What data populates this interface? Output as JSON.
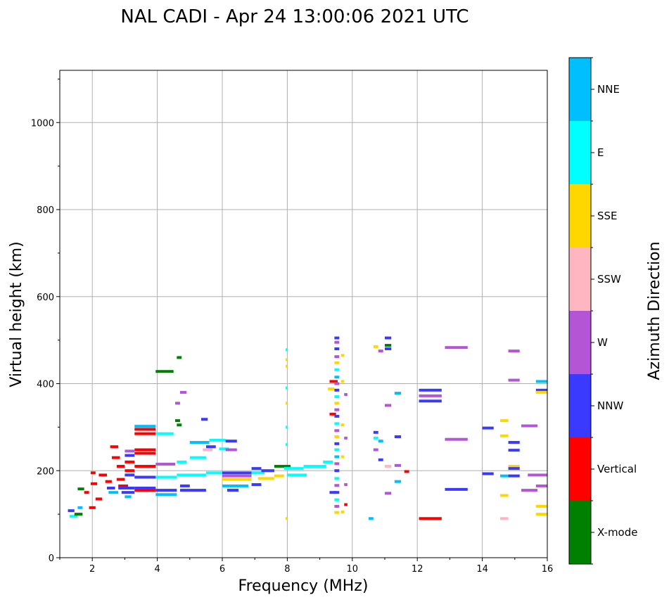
{
  "chart_data": {
    "type": "scatter",
    "title": "NAL CADI - Apr 24 13:00:06 2021 UTC",
    "xlabel": "Frequency (MHz)",
    "ylabel": "Virtual height (km)",
    "xlim": [
      1,
      16
    ],
    "ylim": [
      0,
      1120
    ],
    "xticks": [
      2,
      4,
      6,
      8,
      10,
      12,
      14,
      16
    ],
    "yticks": [
      0,
      200,
      400,
      600,
      800,
      1000
    ],
    "grid": true,
    "colorbar": {
      "title": "Azimuth Direction",
      "categories": [
        {
          "name": "X-mode",
          "color": "#008000"
        },
        {
          "name": "Vertical",
          "color": "#ff0000"
        },
        {
          "name": "NNW",
          "color": "#3a3aff"
        },
        {
          "name": "W",
          "color": "#b355d6"
        },
        {
          "name": "SSW",
          "color": "#ffb6c1"
        },
        {
          "name": "SSE",
          "color": "#ffd700"
        },
        {
          "name": "E",
          "color": "#00ffff"
        },
        {
          "name": "NNE",
          "color": "#00bfff"
        }
      ]
    },
    "traces": [
      {
        "f0": 1.25,
        "f1": 1.45,
        "h": 108,
        "az": "NNW"
      },
      {
        "f0": 1.3,
        "f1": 1.55,
        "h": 95,
        "az": "E"
      },
      {
        "f0": 1.45,
        "f1": 1.7,
        "h": 100,
        "az": "X-mode"
      },
      {
        "f0": 1.55,
        "f1": 1.7,
        "h": 115,
        "az": "NNE"
      },
      {
        "f0": 1.55,
        "f1": 1.75,
        "h": 158,
        "az": "X-mode"
      },
      {
        "f0": 1.75,
        "f1": 1.9,
        "h": 150,
        "az": "Vertical"
      },
      {
        "f0": 1.9,
        "f1": 2.1,
        "h": 115,
        "az": "Vertical"
      },
      {
        "f0": 1.95,
        "f1": 2.1,
        "h": 195,
        "az": "Vertical"
      },
      {
        "f0": 1.95,
        "f1": 2.15,
        "h": 170,
        "az": "Vertical"
      },
      {
        "f0": 2.1,
        "f1": 2.3,
        "h": 135,
        "az": "Vertical"
      },
      {
        "f0": 2.2,
        "f1": 2.45,
        "h": 190,
        "az": "Vertical"
      },
      {
        "f0": 2.4,
        "f1": 2.6,
        "h": 175,
        "az": "Vertical"
      },
      {
        "f0": 2.45,
        "f1": 2.7,
        "h": 160,
        "az": "NNW"
      },
      {
        "f0": 2.5,
        "f1": 2.8,
        "h": 150,
        "az": "NNE"
      },
      {
        "f0": 2.55,
        "f1": 2.8,
        "h": 255,
        "az": "Vertical"
      },
      {
        "f0": 2.6,
        "f1": 2.85,
        "h": 230,
        "az": "Vertical"
      },
      {
        "f0": 2.75,
        "f1": 3.0,
        "h": 210,
        "az": "Vertical"
      },
      {
        "f0": 2.75,
        "f1": 3.0,
        "h": 180,
        "az": "Vertical"
      },
      {
        "f0": 2.8,
        "f1": 3.1,
        "h": 165,
        "az": "Vertical"
      },
      {
        "f0": 2.8,
        "f1": 3.3,
        "h": 160,
        "az": "NNW"
      },
      {
        "f0": 2.9,
        "f1": 3.3,
        "h": 150,
        "az": "NNW"
      },
      {
        "f0": 3.0,
        "f1": 3.3,
        "h": 245,
        "az": "W"
      },
      {
        "f0": 3.0,
        "f1": 3.3,
        "h": 235,
        "az": "NNW"
      },
      {
        "f0": 3.0,
        "f1": 3.3,
        "h": 220,
        "az": "Vertical"
      },
      {
        "f0": 3.0,
        "f1": 3.3,
        "h": 200,
        "az": "Vertical"
      },
      {
        "f0": 3.0,
        "f1": 3.3,
        "h": 190,
        "az": "NNW"
      },
      {
        "f0": 3.0,
        "f1": 3.2,
        "h": 140,
        "az": "NNE"
      },
      {
        "f0": 3.3,
        "f1": 3.95,
        "h": 302,
        "az": "NNE"
      },
      {
        "f0": 3.3,
        "f1": 3.95,
        "h": 295,
        "az": "Vertical"
      },
      {
        "f0": 3.3,
        "f1": 3.95,
        "h": 285,
        "az": "Vertical"
      },
      {
        "f0": 3.3,
        "f1": 3.95,
        "h": 248,
        "az": "Vertical"
      },
      {
        "f0": 3.3,
        "f1": 3.95,
        "h": 240,
        "az": "Vertical"
      },
      {
        "f0": 3.3,
        "f1": 3.95,
        "h": 210,
        "az": "Vertical"
      },
      {
        "f0": 3.3,
        "f1": 3.95,
        "h": 185,
        "az": "NNW"
      },
      {
        "f0": 3.3,
        "f1": 3.95,
        "h": 155,
        "az": "Vertical"
      },
      {
        "f0": 3.3,
        "f1": 3.95,
        "h": 160,
        "az": "NNW"
      },
      {
        "f0": 3.95,
        "f1": 4.5,
        "h": 428,
        "az": "X-mode"
      },
      {
        "f0": 3.95,
        "f1": 4.5,
        "h": 285,
        "az": "E"
      },
      {
        "f0": 3.95,
        "f1": 4.55,
        "h": 215,
        "az": "W"
      },
      {
        "f0": 3.95,
        "f1": 4.6,
        "h": 185,
        "az": "E"
      },
      {
        "f0": 3.95,
        "f1": 4.6,
        "h": 155,
        "az": "NNW"
      },
      {
        "f0": 3.95,
        "f1": 4.6,
        "h": 145,
        "az": "NNE"
      },
      {
        "f0": 4.55,
        "f1": 4.7,
        "h": 315,
        "az": "X-mode"
      },
      {
        "f0": 4.6,
        "f1": 4.75,
        "h": 305,
        "az": "X-mode"
      },
      {
        "f0": 4.6,
        "f1": 4.75,
        "h": 460,
        "az": "X-mode"
      },
      {
        "f0": 4.55,
        "f1": 4.7,
        "h": 355,
        "az": "W"
      },
      {
        "f0": 4.7,
        "f1": 4.9,
        "h": 380,
        "az": "W"
      },
      {
        "f0": 4.6,
        "f1": 4.9,
        "h": 220,
        "az": "E"
      },
      {
        "f0": 4.7,
        "f1": 5.0,
        "h": 165,
        "az": "NNW"
      },
      {
        "f0": 4.6,
        "f1": 5.5,
        "h": 190,
        "az": "E"
      },
      {
        "f0": 4.7,
        "f1": 5.5,
        "h": 155,
        "az": "NNW"
      },
      {
        "f0": 5.0,
        "f1": 5.6,
        "h": 265,
        "az": "NNE"
      },
      {
        "f0": 5.0,
        "f1": 5.5,
        "h": 230,
        "az": "E"
      },
      {
        "f0": 5.5,
        "f1": 6.0,
        "h": 195,
        "az": "E"
      },
      {
        "f0": 5.6,
        "f1": 6.1,
        "h": 270,
        "az": "E"
      },
      {
        "f0": 5.35,
        "f1": 5.55,
        "h": 318,
        "az": "NNW"
      },
      {
        "f0": 5.4,
        "f1": 5.7,
        "h": 248,
        "az": "SSW"
      },
      {
        "f0": 5.5,
        "f1": 5.8,
        "h": 255,
        "az": "NNW"
      },
      {
        "f0": 5.9,
        "f1": 6.2,
        "h": 250,
        "az": "E"
      },
      {
        "f0": 6.1,
        "f1": 6.45,
        "h": 268,
        "az": "NNW"
      },
      {
        "f0": 6.1,
        "f1": 6.45,
        "h": 248,
        "az": "W"
      },
      {
        "f0": 6.0,
        "f1": 6.9,
        "h": 195,
        "az": "NNW"
      },
      {
        "f0": 6.0,
        "f1": 6.9,
        "h": 188,
        "az": "W"
      },
      {
        "f0": 6.0,
        "f1": 6.9,
        "h": 180,
        "az": "SSE"
      },
      {
        "f0": 6.0,
        "f1": 6.8,
        "h": 165,
        "az": "NNE"
      },
      {
        "f0": 6.15,
        "f1": 6.5,
        "h": 155,
        "az": "NNW"
      },
      {
        "f0": 6.9,
        "f1": 7.2,
        "h": 205,
        "az": "NNW"
      },
      {
        "f0": 6.9,
        "f1": 7.3,
        "h": 195,
        "az": "E"
      },
      {
        "f0": 6.9,
        "f1": 7.2,
        "h": 168,
        "az": "NNW"
      },
      {
        "f0": 7.2,
        "f1": 7.6,
        "h": 200,
        "az": "NNW"
      },
      {
        "f0": 7.1,
        "f1": 7.6,
        "h": 182,
        "az": "SSE"
      },
      {
        "f0": 7.6,
        "f1": 8.1,
        "h": 210,
        "az": "X-mode"
      },
      {
        "f0": 7.6,
        "f1": 7.9,
        "h": 188,
        "az": "SSE"
      },
      {
        "f0": 7.9,
        "f1": 8.5,
        "h": 205,
        "az": "E"
      },
      {
        "f0": 8.0,
        "f1": 8.6,
        "h": 190,
        "az": "E"
      },
      {
        "f0": 8.5,
        "f1": 9.2,
        "h": 210,
        "az": "E"
      },
      {
        "f0": 9.1,
        "f1": 9.4,
        "h": 220,
        "az": "E"
      },
      {
        "f0": 7.95,
        "f1": 8.0,
        "h": 478,
        "az": "E"
      },
      {
        "f0": 7.95,
        "f1": 8.0,
        "h": 455,
        "az": "SSE"
      },
      {
        "f0": 7.95,
        "f1": 8.0,
        "h": 440,
        "az": "SSE"
      },
      {
        "f0": 7.95,
        "f1": 8.0,
        "h": 390,
        "az": "E"
      },
      {
        "f0": 7.95,
        "f1": 8.0,
        "h": 355,
        "az": "SSE"
      },
      {
        "f0": 7.95,
        "f1": 8.0,
        "h": 300,
        "az": "E"
      },
      {
        "f0": 7.95,
        "f1": 8.0,
        "h": 260,
        "az": "E"
      },
      {
        "f0": 7.95,
        "f1": 8.0,
        "h": 90,
        "az": "SSE"
      },
      {
        "f0": 9.3,
        "f1": 9.55,
        "h": 405,
        "az": "Vertical"
      },
      {
        "f0": 9.25,
        "f1": 9.45,
        "h": 388,
        "az": "SSE"
      },
      {
        "f0": 9.3,
        "f1": 9.5,
        "h": 330,
        "az": "Vertical"
      },
      {
        "f0": 9.3,
        "f1": 9.5,
        "h": 150,
        "az": "NNW"
      },
      {
        "f0": 9.45,
        "f1": 9.6,
        "h": 505,
        "az": "NNW"
      },
      {
        "f0": 9.45,
        "f1": 9.6,
        "h": 495,
        "az": "W"
      },
      {
        "f0": 9.45,
        "f1": 9.6,
        "h": 480,
        "az": "NNW"
      },
      {
        "f0": 9.45,
        "f1": 9.6,
        "h": 462,
        "az": "W"
      },
      {
        "f0": 9.45,
        "f1": 9.6,
        "h": 448,
        "az": "SSE"
      },
      {
        "f0": 9.45,
        "f1": 9.6,
        "h": 432,
        "az": "E"
      },
      {
        "f0": 9.45,
        "f1": 9.6,
        "h": 415,
        "az": "NNE"
      },
      {
        "f0": 9.45,
        "f1": 9.6,
        "h": 400,
        "az": "W"
      },
      {
        "f0": 9.45,
        "f1": 9.6,
        "h": 385,
        "az": "NNW"
      },
      {
        "f0": 9.45,
        "f1": 9.6,
        "h": 370,
        "az": "E"
      },
      {
        "f0": 9.45,
        "f1": 9.6,
        "h": 355,
        "az": "SSE"
      },
      {
        "f0": 9.45,
        "f1": 9.6,
        "h": 340,
        "az": "W"
      },
      {
        "f0": 9.45,
        "f1": 9.6,
        "h": 325,
        "az": "NNW"
      },
      {
        "f0": 9.45,
        "f1": 9.6,
        "h": 308,
        "az": "E"
      },
      {
        "f0": 9.45,
        "f1": 9.6,
        "h": 292,
        "az": "W"
      },
      {
        "f0": 9.45,
        "f1": 9.6,
        "h": 278,
        "az": "SSE"
      },
      {
        "f0": 9.45,
        "f1": 9.6,
        "h": 262,
        "az": "NNW"
      },
      {
        "f0": 9.45,
        "f1": 9.6,
        "h": 248,
        "az": "E"
      },
      {
        "f0": 9.45,
        "f1": 9.6,
        "h": 232,
        "az": "NNE"
      },
      {
        "f0": 9.45,
        "f1": 9.6,
        "h": 216,
        "az": "W"
      },
      {
        "f0": 9.45,
        "f1": 9.6,
        "h": 200,
        "az": "NNW"
      },
      {
        "f0": 9.45,
        "f1": 9.6,
        "h": 182,
        "az": "E"
      },
      {
        "f0": 9.45,
        "f1": 9.6,
        "h": 166,
        "az": "W"
      },
      {
        "f0": 9.45,
        "f1": 9.6,
        "h": 150,
        "az": "NNW"
      },
      {
        "f0": 9.45,
        "f1": 9.6,
        "h": 133,
        "az": "E"
      },
      {
        "f0": 9.45,
        "f1": 9.6,
        "h": 118,
        "az": "W"
      },
      {
        "f0": 9.45,
        "f1": 9.6,
        "h": 104,
        "az": "SSE"
      },
      {
        "f0": 9.65,
        "f1": 9.75,
        "h": 465,
        "az": "SSE"
      },
      {
        "f0": 9.65,
        "f1": 9.75,
        "h": 405,
        "az": "SSE"
      },
      {
        "f0": 9.65,
        "f1": 9.75,
        "h": 305,
        "az": "SSE"
      },
      {
        "f0": 9.65,
        "f1": 9.75,
        "h": 232,
        "az": "SSE"
      },
      {
        "f0": 9.65,
        "f1": 9.75,
        "h": 105,
        "az": "SSE"
      },
      {
        "f0": 9.75,
        "f1": 9.85,
        "h": 375,
        "az": "W"
      },
      {
        "f0": 9.75,
        "f1": 9.85,
        "h": 275,
        "az": "W"
      },
      {
        "f0": 9.75,
        "f1": 9.85,
        "h": 168,
        "az": "W"
      },
      {
        "f0": 9.75,
        "f1": 9.85,
        "h": 122,
        "az": "Vertical"
      },
      {
        "f0": 10.5,
        "f1": 10.65,
        "h": 90,
        "az": "NNE"
      },
      {
        "f0": 10.65,
        "f1": 10.8,
        "h": 485,
        "az": "SSE"
      },
      {
        "f0": 10.8,
        "f1": 10.95,
        "h": 475,
        "az": "W"
      },
      {
        "f0": 10.65,
        "f1": 10.8,
        "h": 288,
        "az": "NNW"
      },
      {
        "f0": 10.65,
        "f1": 10.8,
        "h": 275,
        "az": "E"
      },
      {
        "f0": 10.8,
        "f1": 10.95,
        "h": 268,
        "az": "NNE"
      },
      {
        "f0": 10.65,
        "f1": 10.8,
        "h": 248,
        "az": "W"
      },
      {
        "f0": 10.8,
        "f1": 10.95,
        "h": 225,
        "az": "NNW"
      },
      {
        "f0": 11.0,
        "f1": 11.2,
        "h": 505,
        "az": "NNW"
      },
      {
        "f0": 11.0,
        "f1": 11.2,
        "h": 488,
        "az": "X-mode"
      },
      {
        "f0": 11.0,
        "f1": 11.2,
        "h": 480,
        "az": "NNW"
      },
      {
        "f0": 11.0,
        "f1": 11.2,
        "h": 350,
        "az": "W"
      },
      {
        "f0": 11.0,
        "f1": 11.2,
        "h": 210,
        "az": "SSW"
      },
      {
        "f0": 11.0,
        "f1": 11.2,
        "h": 148,
        "az": "W"
      },
      {
        "f0": 11.3,
        "f1": 11.5,
        "h": 378,
        "az": "NNE"
      },
      {
        "f0": 11.3,
        "f1": 11.5,
        "h": 278,
        "az": "NNW"
      },
      {
        "f0": 11.3,
        "f1": 11.5,
        "h": 212,
        "az": "W"
      },
      {
        "f0": 11.3,
        "f1": 11.5,
        "h": 175,
        "az": "NNE"
      },
      {
        "f0": 11.6,
        "f1": 11.75,
        "h": 198,
        "az": "Vertical"
      },
      {
        "f0": 12.05,
        "f1": 12.75,
        "h": 385,
        "az": "NNW"
      },
      {
        "f0": 12.05,
        "f1": 12.75,
        "h": 372,
        "az": "W"
      },
      {
        "f0": 12.05,
        "f1": 12.75,
        "h": 360,
        "az": "NNW"
      },
      {
        "f0": 12.05,
        "f1": 12.75,
        "h": 90,
        "az": "Vertical"
      },
      {
        "f0": 12.85,
        "f1": 13.55,
        "h": 483,
        "az": "W"
      },
      {
        "f0": 12.85,
        "f1": 13.55,
        "h": 272,
        "az": "W"
      },
      {
        "f0": 12.85,
        "f1": 13.55,
        "h": 157,
        "az": "NNW"
      },
      {
        "f0": 14.0,
        "f1": 14.35,
        "h": 298,
        "az": "NNW"
      },
      {
        "f0": 14.0,
        "f1": 14.35,
        "h": 193,
        "az": "NNW"
      },
      {
        "f0": 14.55,
        "f1": 14.8,
        "h": 315,
        "az": "SSE"
      },
      {
        "f0": 14.55,
        "f1": 14.8,
        "h": 280,
        "az": "SSE"
      },
      {
        "f0": 14.55,
        "f1": 14.8,
        "h": 188,
        "az": "NNE"
      },
      {
        "f0": 14.55,
        "f1": 14.8,
        "h": 143,
        "az": "SSE"
      },
      {
        "f0": 14.55,
        "f1": 14.8,
        "h": 90,
        "az": "SSW"
      },
      {
        "f0": 14.8,
        "f1": 15.15,
        "h": 475,
        "az": "W"
      },
      {
        "f0": 14.8,
        "f1": 15.15,
        "h": 408,
        "az": "W"
      },
      {
        "f0": 14.8,
        "f1": 15.15,
        "h": 265,
        "az": "NNW"
      },
      {
        "f0": 14.8,
        "f1": 15.15,
        "h": 247,
        "az": "NNW"
      },
      {
        "f0": 14.8,
        "f1": 15.15,
        "h": 210,
        "az": "SSE"
      },
      {
        "f0": 14.8,
        "f1": 15.15,
        "h": 205,
        "az": "NNW"
      },
      {
        "f0": 14.8,
        "f1": 15.15,
        "h": 188,
        "az": "NNW"
      },
      {
        "f0": 15.2,
        "f1": 15.7,
        "h": 303,
        "az": "W"
      },
      {
        "f0": 15.2,
        "f1": 15.7,
        "h": 155,
        "az": "W"
      },
      {
        "f0": 15.4,
        "f1": 16.0,
        "h": 190,
        "az": "W"
      },
      {
        "f0": 15.65,
        "f1": 16.0,
        "h": 405,
        "az": "NNE"
      },
      {
        "f0": 15.65,
        "f1": 16.0,
        "h": 385,
        "az": "NNW"
      },
      {
        "f0": 15.65,
        "f1": 16.0,
        "h": 380,
        "az": "SSE"
      },
      {
        "f0": 15.65,
        "f1": 16.0,
        "h": 165,
        "az": "W"
      },
      {
        "f0": 15.65,
        "f1": 16.0,
        "h": 118,
        "az": "SSE"
      },
      {
        "f0": 15.65,
        "f1": 16.0,
        "h": 100,
        "az": "SSE"
      }
    ]
  }
}
